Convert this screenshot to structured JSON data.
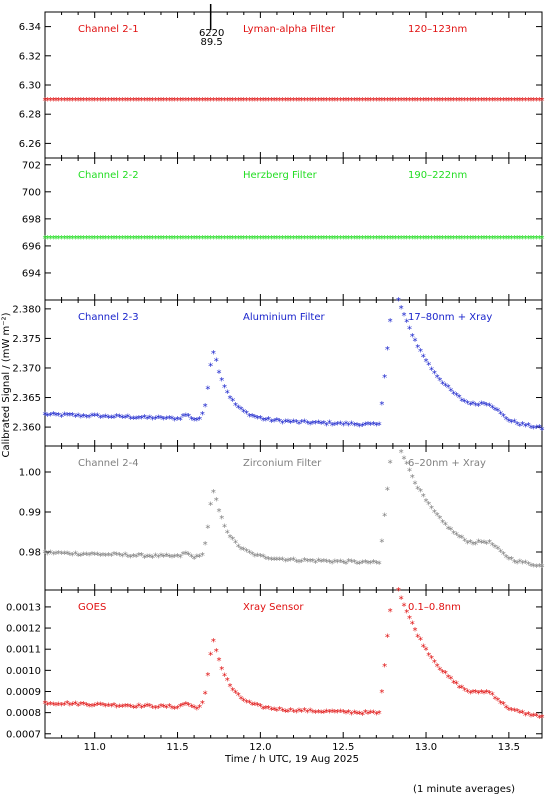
{
  "chart_data": {
    "type": "scatter",
    "x_axis": {
      "label": "Time / h UTC, 19 Aug 2025",
      "range": [
        10.7,
        13.7
      ],
      "ticks": [
        11.0,
        11.5,
        12.0,
        12.5,
        13.0,
        13.5
      ],
      "tick_labels": [
        "11.0",
        "11.5",
        "12.0",
        "12.5",
        "13.0",
        "13.5"
      ]
    },
    "y_label": "Calibrated Signal / (mW m⁻²)",
    "footnote": "(1 minute averages)",
    "marker": "*",
    "panels": [
      {
        "channel": "Channel 2-1",
        "filter": "Lyman-alpha Filter",
        "band": "120–123nm",
        "color": "#e01010",
        "ylim": [
          6.25,
          6.35
        ],
        "yticks": [
          6.26,
          6.28,
          6.3,
          6.32,
          6.34
        ],
        "ytick_labels": [
          "6.26",
          "6.28",
          "6.30",
          "6.32",
          "6.34"
        ],
        "annotation": {
          "x": 11.7,
          "lines": [
            "6220",
            "89.5"
          ]
        },
        "profile": {
          "type": "flat",
          "value": 6.289
        },
        "grid": false
      },
      {
        "channel": "Channel 2-2",
        "filter": "Herzberg Filter",
        "band": "190–222nm",
        "color": "#22dd22",
        "ylim": [
          692.0,
          702.5
        ],
        "yticks": [
          694,
          696,
          698,
          700,
          702
        ],
        "ytick_labels": [
          "694",
          "696",
          "698",
          "700",
          "702"
        ],
        "profile": {
          "type": "flat",
          "value": 696.5
        },
        "grid": false
      },
      {
        "channel": "Channel 2-3",
        "filter": "Aluminium Filter",
        "band": "17–80nm + Xray",
        "color": "#1a24cc",
        "ylim": [
          2.3568,
          2.3815
        ],
        "yticks": [
          2.36,
          2.365,
          2.37,
          2.375,
          2.38
        ],
        "ytick_labels": [
          "2.360",
          "2.365",
          "2.370",
          "2.375",
          "2.380"
        ],
        "profile": {
          "type": "flare",
          "base": 2.3565,
          "scale": 0.0224
        },
        "grid": false
      },
      {
        "channel": "Channel 2-4",
        "filter": "Zirconium Filter",
        "band": "6–20nm + Xray",
        "color": "#808080",
        "ylim": [
          0.9705,
          1.0065
        ],
        "yticks": [
          0.98,
          0.99,
          1.0
        ],
        "ytick_labels": [
          "0.98",
          "0.99",
          "1.00"
        ],
        "profile": {
          "type": "flare",
          "base": 0.9718,
          "scale": 0.0318
        },
        "grid": false
      },
      {
        "channel": "GOES",
        "filter": "Xray Sensor",
        "band": "0.1–0.8nm",
        "color": "#e01010",
        "ylim": [
          0.00068,
          0.00138
        ],
        "yticks": [
          0.0007,
          0.0008,
          0.0009,
          0.001,
          0.0011,
          0.0012,
          0.0013
        ],
        "ytick_labels": [
          "0.0007",
          "0.0008",
          "0.0009",
          "0.0010",
          "0.0011",
          "0.0012",
          "0.0013"
        ],
        "profile": {
          "type": "flare",
          "base": 0.00069,
          "scale": 0.00062
        },
        "grid": false
      }
    ]
  }
}
